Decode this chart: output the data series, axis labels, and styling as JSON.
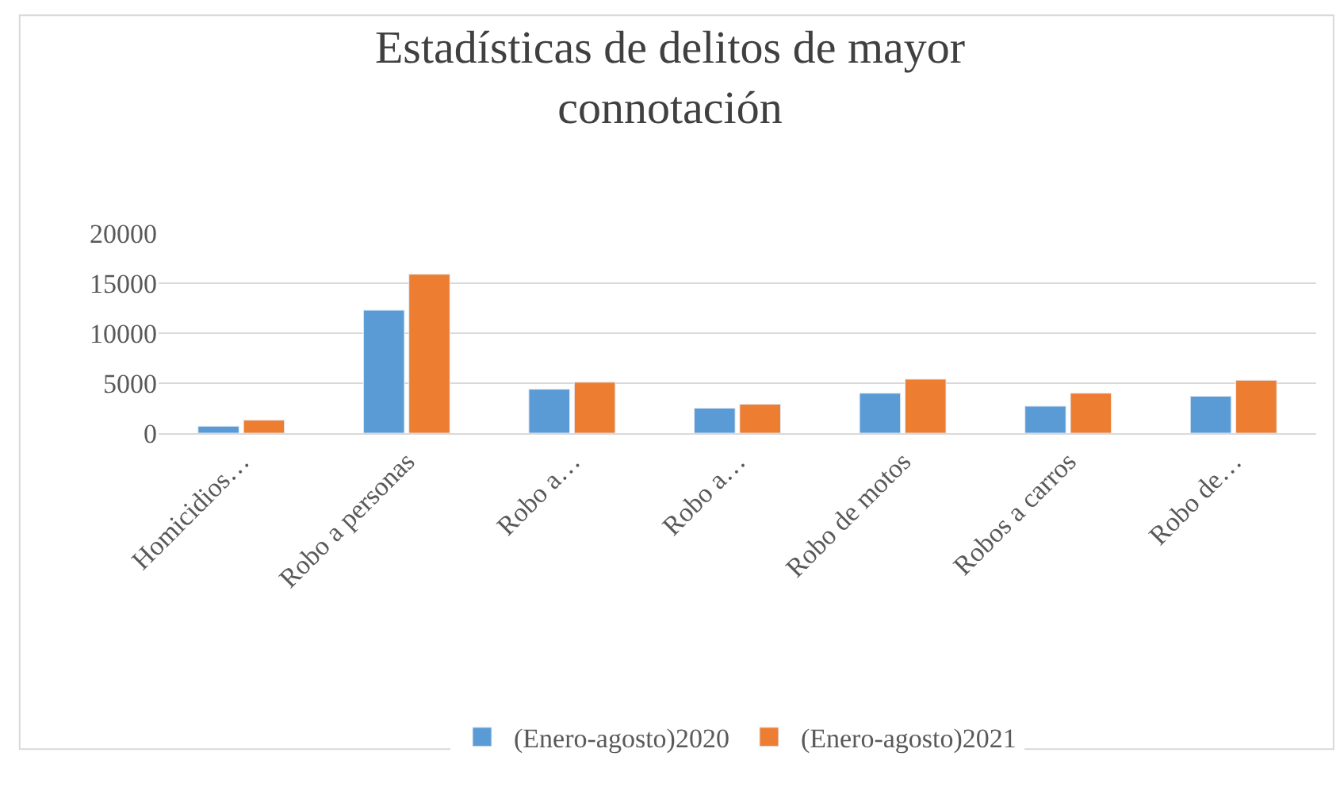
{
  "chart_data": {
    "type": "bar",
    "title": "Estadísticas de delitos de mayor connotación",
    "categories": [
      "Homicidios…",
      "Robo a personas",
      "Robo a…",
      "Robo a…",
      "Robo de motos",
      "Robos a carros",
      "Robo de…"
    ],
    "series": [
      {
        "name": "(Enero-agosto)2020",
        "color": "#5b9bd5",
        "values": [
          700,
          12300,
          4400,
          2500,
          4000,
          2700,
          3700
        ]
      },
      {
        "name": "(Enero-agosto)2021",
        "color": "#ed7d31",
        "values": [
          1300,
          15900,
          5100,
          2900,
          5400,
          4000,
          5300
        ]
      }
    ],
    "ylim": [
      0,
      20000
    ],
    "yticks": [
      0,
      5000,
      10000,
      15000,
      20000
    ],
    "grid": "y",
    "legend": "bottom"
  }
}
